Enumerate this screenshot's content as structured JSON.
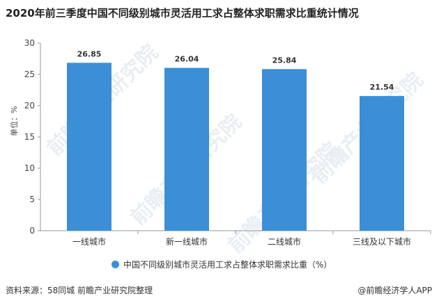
{
  "title": "2020年前三季度中国不同级别城市灵活用工求占整体求职需求比重统计情况",
  "source": "资料来源：58同城 前瞻产业研究院整理",
  "brand": "@前瞻经济学人APP",
  "watermark": "前瞻产业研究院",
  "colors": {
    "bar": "#3b8fd6",
    "axis": "#999999",
    "grid": "#d9d9d9"
  },
  "chart_data": {
    "type": "bar",
    "categories": [
      "一线城市",
      "新一线城市",
      "二线城市",
      "三线及以下城市"
    ],
    "series": [
      {
        "name": "中国不同级别城市灵活用工求占整体求职需求比重（%）",
        "values": [
          26.85,
          26.04,
          25.84,
          21.54
        ]
      }
    ],
    "ylabel": "单位：%",
    "ylim": [
      0,
      30
    ],
    "yticks": [
      "0",
      "5",
      "10",
      "15",
      "20",
      "25",
      "30"
    ],
    "data_labels": [
      "26.85",
      "26.04",
      "25.84",
      "21.54"
    ],
    "legend_position": "bottom"
  }
}
